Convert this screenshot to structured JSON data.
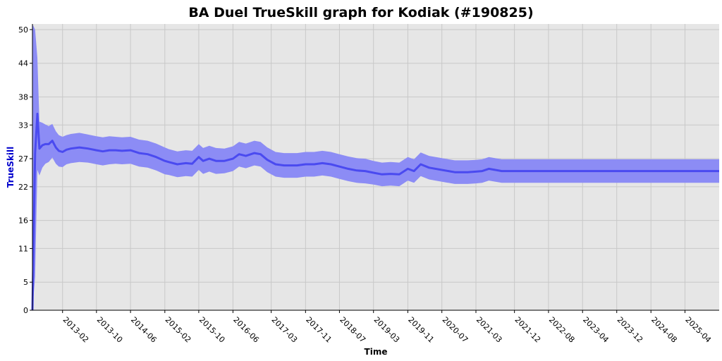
{
  "chart_data": {
    "type": "area",
    "title": "BA Duel TrueSkill graph for Kodiak (#190825)",
    "xlabel": "Time",
    "ylabel": "TrueSkill",
    "x_start": "2012-07",
    "x_end": "2025-12",
    "ylim": [
      0,
      51
    ],
    "yticks": [
      0,
      5,
      11,
      16,
      22,
      27,
      33,
      38,
      44,
      50
    ],
    "xticks": [
      "2013-02",
      "2013-10",
      "2014-06",
      "2015-02",
      "2015-10",
      "2016-06",
      "2017-03",
      "2017-11",
      "2018-07",
      "2019-03",
      "2019-11",
      "2020-07",
      "2021-03",
      "2021-12",
      "2022-08",
      "2023-04",
      "2023-12",
      "2024-08",
      "2025-04"
    ],
    "grid": true,
    "colors": {
      "plot_background": "#e6e6e6",
      "grid": "#c8c8c8",
      "band": "#8c8cf5",
      "line": "#4a4af0"
    },
    "series": [
      {
        "x": [
          "2012-07-01",
          "2012-07-20",
          "2012-08-05",
          "2012-08-20",
          "2012-09-10",
          "2012-10-01",
          "2012-10-25",
          "2012-11-20",
          "2012-12-15",
          "2013-01-05",
          "2013-02-01",
          "2013-03-01",
          "2013-04-01",
          "2013-06-01",
          "2013-08-01",
          "2013-10-01",
          "2013-11-15",
          "2014-01-01",
          "2014-02-15",
          "2014-04-01",
          "2014-06-01",
          "2014-08-01",
          "2014-10-01",
          "2014-12-01",
          "2015-02-01",
          "2015-03-01",
          "2015-05-01",
          "2015-07-01",
          "2015-08-15",
          "2015-10-01",
          "2015-11-01",
          "2015-12-15",
          "2016-02-01",
          "2016-04-01",
          "2016-06-01",
          "2016-07-15",
          "2016-09-01",
          "2016-11-01",
          "2016-12-15",
          "2017-02-01",
          "2017-04-01",
          "2017-06-01",
          "2017-09-01",
          "2017-11-01",
          "2018-01-01",
          "2018-03-01",
          "2018-05-01",
          "2018-07-01",
          "2018-09-01",
          "2018-11-01",
          "2019-01-01",
          "2019-03-01",
          "2019-05-01",
          "2019-07-01",
          "2019-09-01",
          "2019-11-01",
          "2019-12-15",
          "2020-02-01",
          "2020-04-01",
          "2020-07-01",
          "2020-10-01",
          "2021-01-01",
          "2021-03-01",
          "2021-04-15",
          "2021-06-01",
          "2021-09-01",
          "2022-01-01",
          "2023-01-01",
          "2024-01-01",
          "2025-01-01",
          "2025-12-01"
        ],
        "mu": [
          0,
          28,
          35,
          28.8,
          29.4,
          29.6,
          29.6,
          30.2,
          29,
          28.4,
          28.2,
          28.6,
          28.8,
          29,
          28.8,
          28.5,
          28.3,
          28.5,
          28.5,
          28.4,
          28.5,
          28,
          27.8,
          27.3,
          26.6,
          26.4,
          26.0,
          26.2,
          26.1,
          27.3,
          26.6,
          27.0,
          26.6,
          26.6,
          27.0,
          27.8,
          27.5,
          28.0,
          27.8,
          26.8,
          26.0,
          25.8,
          25.8,
          26.0,
          26.0,
          26.2,
          26.0,
          25.6,
          25.2,
          24.9,
          24.8,
          24.5,
          24.2,
          24.3,
          24.2,
          25.2,
          24.8,
          26.0,
          25.4,
          25.0,
          24.6,
          24.6,
          24.7,
          24.8,
          25.2,
          24.8,
          24.8,
          24.8,
          24.8,
          24.8,
          24.8
        ],
        "sigma": [
          51,
          22,
          10,
          4.8,
          4.0,
          3.5,
          3.2,
          3.0,
          2.9,
          2.8,
          2.7,
          2.6,
          2.6,
          2.6,
          2.5,
          2.5,
          2.5,
          2.5,
          2.4,
          2.4,
          2.4,
          2.4,
          2.4,
          2.4,
          2.4,
          2.3,
          2.3,
          2.3,
          2.3,
          2.3,
          2.3,
          2.3,
          2.3,
          2.2,
          2.2,
          2.2,
          2.2,
          2.2,
          2.2,
          2.2,
          2.2,
          2.2,
          2.2,
          2.2,
          2.2,
          2.2,
          2.2,
          2.2,
          2.2,
          2.2,
          2.2,
          2.1,
          2.1,
          2.1,
          2.1,
          2.1,
          2.1,
          2.1,
          2.1,
          2.1,
          2.1,
          2.1,
          2.1,
          2.1,
          2.1,
          2.1,
          2.1,
          2.1,
          2.1,
          2.1,
          2.1
        ]
      }
    ]
  }
}
